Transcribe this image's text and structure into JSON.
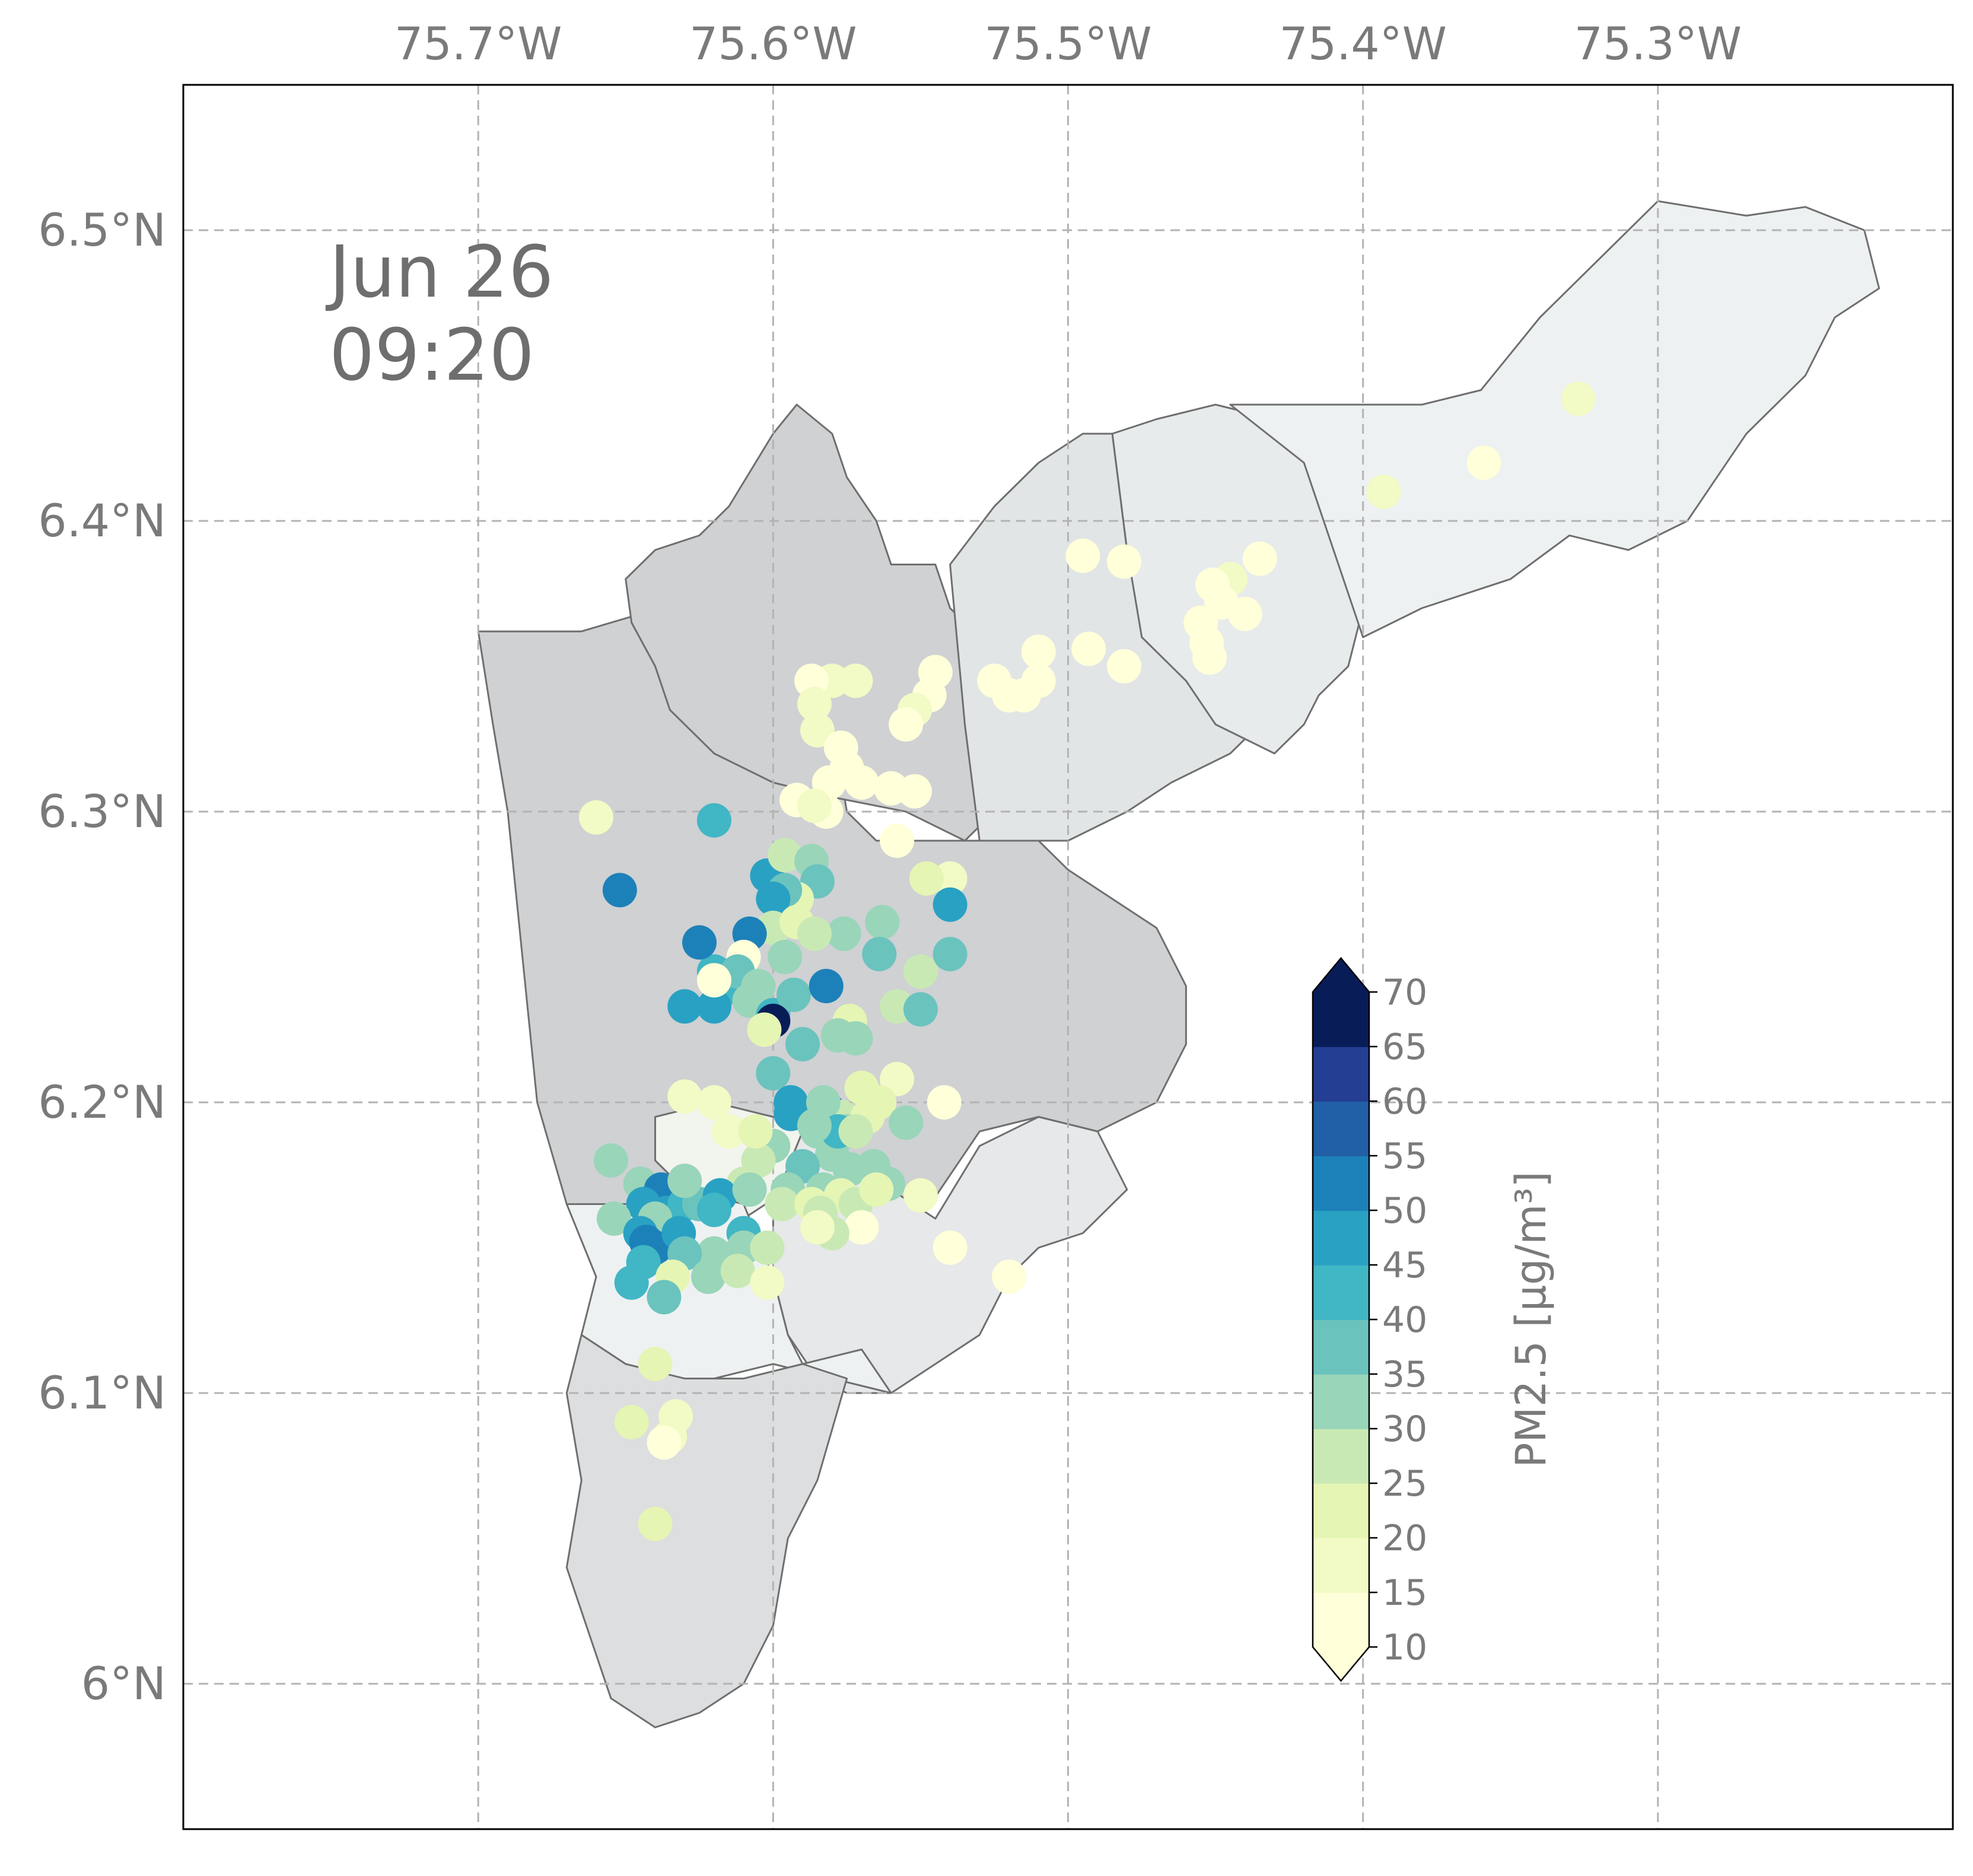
{
  "annotation": {
    "date": "Jun 26",
    "time": "09:20"
  },
  "map_extent": {
    "lon": [
      -75.8,
      -75.2
    ],
    "lat": [
      5.95,
      6.55
    ]
  },
  "lon_ticks": [
    {
      "value": -75.7,
      "label": "75.7°W"
    },
    {
      "value": -75.6,
      "label": "75.6°W"
    },
    {
      "value": -75.5,
      "label": "75.5°W"
    },
    {
      "value": -75.4,
      "label": "75.4°W"
    },
    {
      "value": -75.3,
      "label": "75.3°W"
    }
  ],
  "lat_ticks": [
    {
      "value": 6.5,
      "label": "6.5°N"
    },
    {
      "value": 6.4,
      "label": "6.4°N"
    },
    {
      "value": 6.3,
      "label": "6.3°N"
    },
    {
      "value": 6.2,
      "label": "6.2°N"
    },
    {
      "value": 6.1,
      "label": "6.1°N"
    },
    {
      "value": 6.0,
      "label": "6°N"
    }
  ],
  "grid": true,
  "colorbar": {
    "title": "PM2.5 [µg/m³]",
    "levels": [
      10,
      15,
      20,
      25,
      30,
      35,
      40,
      45,
      50,
      55,
      60,
      65,
      70
    ],
    "colors": [
      "#ffffd9",
      "#f2fac5",
      "#e5f5b4",
      "#c9e9b4",
      "#99d5b9",
      "#6bc3be",
      "#41b6c4",
      "#29a1c3",
      "#1d81b9",
      "#215fa6",
      "#243e94",
      "#081d58"
    ],
    "extend": "both",
    "placement": "lower-right"
  },
  "regions": [
    {
      "name": "north-west",
      "fill": "#cfd1d3",
      "points": [
        [
          -75.665,
          6.362
        ],
        [
          -75.645,
          6.368
        ],
        [
          -75.625,
          6.365
        ],
        [
          -75.61,
          6.36
        ],
        [
          -75.595,
          6.345
        ],
        [
          -75.58,
          6.33
        ],
        [
          -75.575,
          6.3
        ],
        [
          -75.565,
          6.29
        ],
        [
          -75.55,
          6.29
        ],
        [
          -75.54,
          6.29
        ],
        [
          -75.53,
          6.29
        ],
        [
          -75.51,
          6.29
        ],
        [
          -75.5,
          6.28
        ],
        [
          -75.47,
          6.26
        ],
        [
          -75.46,
          6.24
        ],
        [
          -75.46,
          6.22
        ],
        [
          -75.47,
          6.2
        ],
        [
          -75.49,
          6.19
        ],
        [
          -75.51,
          6.195
        ],
        [
          -75.53,
          6.19
        ],
        [
          -75.55,
          6.16
        ],
        [
          -75.57,
          6.165
        ],
        [
          -75.59,
          6.17
        ],
        [
          -75.61,
          6.175
        ],
        [
          -75.63,
          6.17
        ],
        [
          -75.65,
          6.165
        ],
        [
          -75.67,
          6.165
        ],
        [
          -75.68,
          6.2
        ],
        [
          -75.685,
          6.25
        ],
        [
          -75.69,
          6.3
        ],
        [
          -75.695,
          6.33
        ],
        [
          -75.7,
          6.362
        ]
      ]
    },
    {
      "name": "north-center",
      "fill": "#cfd1d3",
      "points": [
        [
          -75.65,
          6.38
        ],
        [
          -75.64,
          6.39
        ],
        [
          -75.625,
          6.395
        ],
        [
          -75.615,
          6.405
        ],
        [
          -75.6,
          6.43
        ],
        [
          -75.592,
          6.44
        ],
        [
          -75.58,
          6.43
        ],
        [
          -75.575,
          6.415
        ],
        [
          -75.565,
          6.4
        ],
        [
          -75.56,
          6.385
        ],
        [
          -75.545,
          6.385
        ],
        [
          -75.54,
          6.37
        ],
        [
          -75.53,
          6.36
        ],
        [
          -75.525,
          6.33
        ],
        [
          -75.525,
          6.3
        ],
        [
          -75.535,
          6.29
        ],
        [
          -75.555,
          6.3
        ],
        [
          -75.58,
          6.305
        ],
        [
          -75.6,
          6.31
        ],
        [
          -75.62,
          6.32
        ],
        [
          -75.635,
          6.335
        ],
        [
          -75.64,
          6.35
        ],
        [
          -75.648,
          6.365
        ]
      ]
    },
    {
      "name": "north-east-1",
      "fill": "#e2e5e6",
      "points": [
        [
          -75.54,
          6.385
        ],
        [
          -75.525,
          6.405
        ],
        [
          -75.51,
          6.42
        ],
        [
          -75.495,
          6.43
        ],
        [
          -75.485,
          6.43
        ],
        [
          -75.48,
          6.39
        ],
        [
          -75.47,
          6.36
        ],
        [
          -75.45,
          6.34
        ],
        [
          -75.435,
          6.33
        ],
        [
          -75.445,
          6.32
        ],
        [
          -75.465,
          6.31
        ],
        [
          -75.48,
          6.3
        ],
        [
          -75.49,
          6.295
        ],
        [
          -75.5,
          6.29
        ],
        [
          -75.51,
          6.29
        ],
        [
          -75.53,
          6.29
        ],
        [
          -75.535,
          6.33
        ]
      ]
    },
    {
      "name": "north-east-2",
      "fill": "#e8ebec",
      "points": [
        [
          -75.485,
          6.43
        ],
        [
          -75.47,
          6.435
        ],
        [
          -75.45,
          6.44
        ],
        [
          -75.43,
          6.435
        ],
        [
          -75.42,
          6.42
        ],
        [
          -75.41,
          6.395
        ],
        [
          -75.4,
          6.37
        ],
        [
          -75.405,
          6.35
        ],
        [
          -75.415,
          6.34
        ],
        [
          -75.42,
          6.33
        ],
        [
          -75.43,
          6.32
        ],
        [
          -75.44,
          6.325
        ],
        [
          -75.45,
          6.33
        ],
        [
          -75.46,
          6.345
        ],
        [
          -75.475,
          6.36
        ],
        [
          -75.48,
          6.39
        ]
      ]
    },
    {
      "name": "north-east-3",
      "fill": "#eef1f2",
      "points": [
        [
          -75.445,
          6.44
        ],
        [
          -75.42,
          6.44
        ],
        [
          -75.4,
          6.44
        ],
        [
          -75.38,
          6.44
        ],
        [
          -75.36,
          6.445
        ],
        [
          -75.34,
          6.47
        ],
        [
          -75.32,
          6.49
        ],
        [
          -75.3,
          6.51
        ],
        [
          -75.27,
          6.505
        ],
        [
          -75.25,
          6.508
        ],
        [
          -75.23,
          6.5
        ],
        [
          -75.225,
          6.48
        ],
        [
          -75.24,
          6.47
        ],
        [
          -75.25,
          6.45
        ],
        [
          -75.27,
          6.43
        ],
        [
          -75.29,
          6.4
        ],
        [
          -75.31,
          6.39
        ],
        [
          -75.33,
          6.395
        ],
        [
          -75.35,
          6.38
        ],
        [
          -75.38,
          6.37
        ],
        [
          -75.4,
          6.36
        ],
        [
          -75.41,
          6.39
        ],
        [
          -75.42,
          6.42
        ]
      ]
    },
    {
      "name": "south-center-small",
      "fill": "#f2f4ee",
      "points": [
        [
          -75.64,
          6.195
        ],
        [
          -75.62,
          6.2
        ],
        [
          -75.6,
          6.195
        ],
        [
          -75.59,
          6.19
        ],
        [
          -75.595,
          6.17
        ],
        [
          -75.61,
          6.16
        ],
        [
          -75.625,
          6.165
        ],
        [
          -75.64,
          6.18
        ]
      ]
    },
    {
      "name": "south-east",
      "fill": "#e6e8e9",
      "points": [
        [
          -75.59,
          6.19
        ],
        [
          -75.58,
          6.18
        ],
        [
          -75.56,
          6.17
        ],
        [
          -75.545,
          6.16
        ],
        [
          -75.53,
          6.185
        ],
        [
          -75.51,
          6.195
        ],
        [
          -75.49,
          6.19
        ],
        [
          -75.48,
          6.17
        ],
        [
          -75.495,
          6.155
        ],
        [
          -75.51,
          6.15
        ],
        [
          -75.52,
          6.14
        ],
        [
          -75.53,
          6.12
        ],
        [
          -75.545,
          6.11
        ],
        [
          -75.56,
          6.1
        ],
        [
          -75.575,
          6.1
        ],
        [
          -75.585,
          6.105
        ],
        [
          -75.595,
          6.12
        ],
        [
          -75.6,
          6.14
        ],
        [
          -75.6,
          6.165
        ]
      ]
    },
    {
      "name": "south-west",
      "fill": "#eef1f2",
      "points": [
        [
          -75.67,
          6.165
        ],
        [
          -75.65,
          6.165
        ],
        [
          -75.63,
          6.17
        ],
        [
          -75.61,
          6.165
        ],
        [
          -75.6,
          6.14
        ],
        [
          -75.595,
          6.12
        ],
        [
          -75.59,
          6.11
        ],
        [
          -75.57,
          6.115
        ],
        [
          -75.56,
          6.1
        ],
        [
          -75.58,
          6.105
        ],
        [
          -75.6,
          6.11
        ],
        [
          -75.62,
          6.105
        ],
        [
          -75.64,
          6.105
        ],
        [
          -75.65,
          6.11
        ],
        [
          -75.665,
          6.12
        ],
        [
          -75.66,
          6.14
        ]
      ]
    },
    {
      "name": "south",
      "fill": "#dcdedf",
      "points": [
        [
          -75.665,
          6.12
        ],
        [
          -75.65,
          6.11
        ],
        [
          -75.63,
          6.105
        ],
        [
          -75.61,
          6.105
        ],
        [
          -75.59,
          6.11
        ],
        [
          -75.575,
          6.105
        ],
        [
          -75.585,
          6.07
        ],
        [
          -75.595,
          6.05
        ],
        [
          -75.6,
          6.02
        ],
        [
          -75.61,
          6.0
        ],
        [
          -75.625,
          5.99
        ],
        [
          -75.64,
          5.985
        ],
        [
          -75.655,
          5.995
        ],
        [
          -75.66,
          6.01
        ],
        [
          -75.67,
          6.04
        ],
        [
          -75.665,
          6.07
        ],
        [
          -75.67,
          6.1
        ]
      ]
    }
  ],
  "stations": [
    [
      -75.327,
      6.442,
      15
    ],
    [
      -75.359,
      6.42,
      12
    ],
    [
      -75.393,
      6.41,
      17
    ],
    [
      -75.435,
      6.387,
      12
    ],
    [
      -75.445,
      6.38,
      15
    ],
    [
      -75.451,
      6.378,
      12
    ],
    [
      -75.448,
      6.372,
      14
    ],
    [
      -75.44,
      6.368,
      12
    ],
    [
      -75.455,
      6.365,
      13
    ],
    [
      -75.453,
      6.358,
      14
    ],
    [
      -75.452,
      6.353,
      12
    ],
    [
      -75.495,
      6.388,
      13
    ],
    [
      -75.481,
      6.386,
      12
    ],
    [
      -75.493,
      6.356,
      12
    ],
    [
      -75.481,
      6.35,
      12
    ],
    [
      -75.51,
      6.355,
      14
    ],
    [
      -75.51,
      6.345,
      14
    ],
    [
      -75.525,
      6.345,
      12
    ],
    [
      -75.515,
      6.34,
      14
    ],
    [
      -75.52,
      6.34,
      13
    ],
    [
      -75.545,
      6.348,
      13
    ],
    [
      -75.547,
      6.34,
      12
    ],
    [
      -75.552,
      6.335,
      15
    ],
    [
      -75.555,
      6.33,
      12
    ],
    [
      -75.58,
      6.345,
      15
    ],
    [
      -75.587,
      6.345,
      13
    ],
    [
      -75.572,
      6.345,
      15
    ],
    [
      -75.586,
      6.337,
      15
    ],
    [
      -75.585,
      6.328,
      15
    ],
    [
      -75.577,
      6.322,
      12
    ],
    [
      -75.575,
      6.315,
      12
    ],
    [
      -75.581,
      6.31,
      12
    ],
    [
      -75.57,
      6.31,
      12
    ],
    [
      -75.56,
      6.308,
      13
    ],
    [
      -75.552,
      6.307,
      13
    ],
    [
      -75.592,
      6.304,
      12
    ],
    [
      -75.582,
      6.3,
      12
    ],
    [
      -75.586,
      6.302,
      15
    ],
    [
      -75.558,
      6.29,
      13
    ],
    [
      -75.66,
      6.298,
      17
    ],
    [
      -75.62,
      6.297,
      43
    ],
    [
      -75.652,
      6.273,
      50
    ],
    [
      -75.602,
      6.278,
      45
    ],
    [
      -75.596,
      6.285,
      26
    ],
    [
      -75.587,
      6.283,
      30
    ],
    [
      -75.585,
      6.276,
      35
    ],
    [
      -75.592,
      6.27,
      20
    ],
    [
      -75.596,
      6.273,
      35
    ],
    [
      -75.6,
      6.27,
      45
    ],
    [
      -75.54,
      6.277,
      18
    ],
    [
      -75.548,
      6.277,
      20
    ],
    [
      -75.54,
      6.268,
      48
    ],
    [
      -75.576,
      6.258,
      30
    ],
    [
      -75.563,
      6.262,
      34
    ],
    [
      -75.6,
      6.26,
      28
    ],
    [
      -75.592,
      6.262,
      23
    ],
    [
      -75.586,
      6.258,
      28
    ],
    [
      -75.596,
      6.25,
      30
    ],
    [
      -75.62,
      6.245,
      42
    ],
    [
      -75.618,
      6.238,
      44
    ],
    [
      -75.625,
      6.255,
      50
    ],
    [
      -75.608,
      6.258,
      50
    ],
    [
      -75.61,
      6.25,
      12
    ],
    [
      -75.612,
      6.245,
      35
    ],
    [
      -75.605,
      6.24,
      32
    ],
    [
      -75.608,
      6.235,
      30
    ],
    [
      -75.6,
      6.23,
      42
    ],
    [
      -75.593,
      6.237,
      36
    ],
    [
      -75.582,
      6.24,
      50
    ],
    [
      -75.63,
      6.233,
      46
    ],
    [
      -75.62,
      6.233,
      48
    ],
    [
      -75.62,
      6.242,
      12
    ],
    [
      -75.6,
      6.228,
      68
    ],
    [
      -75.603,
      6.225,
      22
    ],
    [
      -75.564,
      6.251,
      38
    ],
    [
      -75.55,
      6.245,
      25
    ],
    [
      -75.54,
      6.251,
      38
    ],
    [
      -75.558,
      6.233,
      25
    ],
    [
      -75.55,
      6.232,
      38
    ],
    [
      -75.574,
      6.228,
      22
    ],
    [
      -75.572,
      6.222,
      30
    ],
    [
      -75.578,
      6.223,
      32
    ],
    [
      -75.59,
      6.22,
      35
    ],
    [
      -75.6,
      6.21,
      35
    ],
    [
      -75.594,
      6.2,
      46
    ],
    [
      -75.581,
      6.197,
      52
    ],
    [
      -75.577,
      6.195,
      28
    ],
    [
      -75.558,
      6.208,
      18
    ],
    [
      -75.542,
      6.2,
      14
    ],
    [
      -75.57,
      6.205,
      20
    ],
    [
      -75.564,
      6.2,
      22
    ],
    [
      -75.568,
      6.195,
      24
    ],
    [
      -75.575,
      6.19,
      30
    ],
    [
      -75.583,
      6.2,
      30
    ],
    [
      -75.585,
      6.19,
      32
    ],
    [
      -75.58,
      6.182,
      30
    ],
    [
      -75.578,
      6.19,
      40
    ],
    [
      -75.572,
      6.19,
      25
    ],
    [
      -75.555,
      6.193,
      33
    ],
    [
      -75.574,
      6.177,
      34
    ],
    [
      -75.566,
      6.178,
      30
    ],
    [
      -75.561,
      6.172,
      32
    ],
    [
      -75.59,
      6.178,
      38
    ],
    [
      -75.583,
      6.17,
      30
    ],
    [
      -75.595,
      6.17,
      30
    ],
    [
      -75.597,
      6.165,
      25
    ],
    [
      -75.587,
      6.165,
      22
    ],
    [
      -75.577,
      6.168,
      20
    ],
    [
      -75.572,
      6.165,
      25
    ],
    [
      -75.55,
      6.168,
      18
    ],
    [
      -75.565,
      6.17,
      20
    ],
    [
      -75.61,
      6.172,
      26
    ],
    [
      -75.6,
      6.185,
      32
    ],
    [
      -75.605,
      6.18,
      25
    ],
    [
      -75.615,
      6.19,
      16
    ],
    [
      -75.62,
      6.2,
      18
    ],
    [
      -75.63,
      6.202,
      18
    ],
    [
      -75.606,
      6.19,
      20
    ],
    [
      -75.594,
      6.196,
      46
    ],
    [
      -75.586,
      6.192,
      34
    ],
    [
      -75.57,
      6.157,
      14
    ],
    [
      -75.58,
      6.155,
      25
    ],
    [
      -75.584,
      6.162,
      25
    ],
    [
      -75.585,
      6.157,
      15
    ],
    [
      -75.54,
      6.15,
      12
    ],
    [
      -75.52,
      6.14,
      12
    ],
    [
      -75.655,
      6.18,
      32
    ],
    [
      -75.645,
      6.172,
      30
    ],
    [
      -75.638,
      6.17,
      52
    ],
    [
      -75.64,
      6.165,
      52
    ],
    [
      -75.644,
      6.165,
      46
    ],
    [
      -75.636,
      6.162,
      48
    ],
    [
      -75.63,
      6.165,
      40
    ],
    [
      -75.625,
      6.165,
      38
    ],
    [
      -75.618,
      6.168,
      45
    ],
    [
      -75.62,
      6.163,
      40
    ],
    [
      -75.63,
      6.173,
      30
    ],
    [
      -75.654,
      6.16,
      34
    ],
    [
      -75.64,
      6.16,
      34
    ],
    [
      -75.645,
      6.155,
      48
    ],
    [
      -75.643,
      6.152,
      52
    ],
    [
      -75.64,
      6.15,
      50
    ],
    [
      -75.632,
      6.155,
      46
    ],
    [
      -75.608,
      6.17,
      32
    ],
    [
      -75.61,
      6.155,
      40
    ],
    [
      -75.61,
      6.15,
      34
    ],
    [
      -75.602,
      6.15,
      28
    ],
    [
      -75.62,
      6.148,
      30
    ],
    [
      -75.63,
      6.148,
      36
    ],
    [
      -75.644,
      6.145,
      44
    ],
    [
      -75.634,
      6.14,
      20
    ],
    [
      -75.622,
      6.14,
      30
    ],
    [
      -75.612,
      6.142,
      27
    ],
    [
      -75.602,
      6.138,
      15
    ],
    [
      -75.648,
      6.138,
      40
    ],
    [
      -75.637,
      6.133,
      37
    ],
    [
      -75.64,
      6.11,
      20
    ],
    [
      -75.648,
      6.09,
      20
    ],
    [
      -75.633,
      6.092,
      17
    ],
    [
      -75.635,
      6.085,
      16
    ],
    [
      -75.637,
      6.083,
      12
    ],
    [
      -75.64,
      6.055,
      20
    ]
  ]
}
